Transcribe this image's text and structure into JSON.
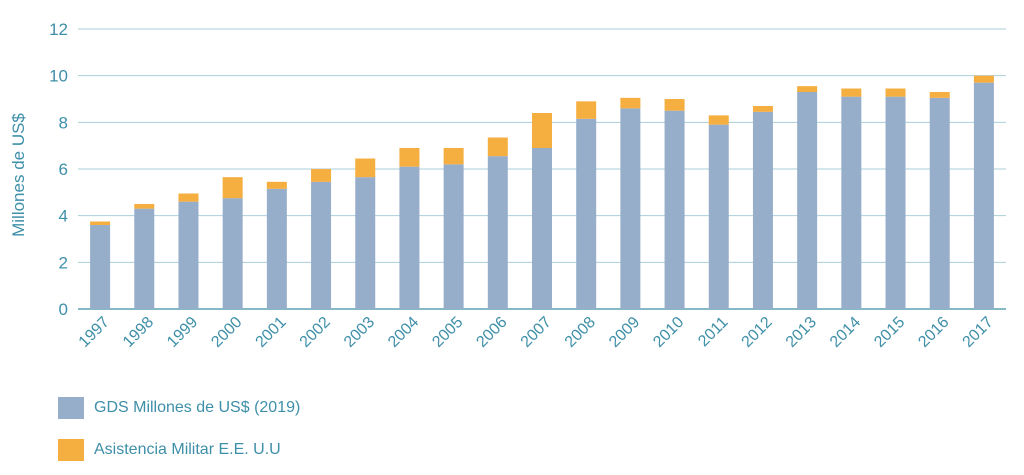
{
  "chart_data": {
    "type": "bar",
    "stacked": true,
    "title": "",
    "xlabel": "",
    "ylabel": "Millones de US$",
    "ylim": [
      0,
      12
    ],
    "yticks": [
      0,
      2,
      4,
      6,
      8,
      10,
      12
    ],
    "grid": true,
    "legend_position": "bottom-left",
    "categories": [
      "1997",
      "1998",
      "1999",
      "2000",
      "2001",
      "2002",
      "2003",
      "2004",
      "2005",
      "2006",
      "2007",
      "2008",
      "2009",
      "2010",
      "2011",
      "2012",
      "2013",
      "2014",
      "2015",
      "2016",
      "2017"
    ],
    "series": [
      {
        "name": "GDS Millones de US$ (2019)",
        "color": "#97aecb",
        "values": [
          3.6,
          4.3,
          4.6,
          4.75,
          5.15,
          5.45,
          5.65,
          6.1,
          6.2,
          6.55,
          6.9,
          8.15,
          8.6,
          8.5,
          7.9,
          8.45,
          9.3,
          9.1,
          9.1,
          9.05,
          9.7
        ]
      },
      {
        "name": "Asistencia Militar E.E. U.U",
        "color": "#f5ae40",
        "values": [
          0.15,
          0.2,
          0.35,
          0.9,
          0.3,
          0.55,
          0.8,
          0.8,
          0.7,
          0.8,
          1.5,
          0.75,
          0.45,
          0.5,
          0.4,
          0.25,
          0.25,
          0.35,
          0.35,
          0.25,
          0.3
        ]
      }
    ]
  },
  "colors": {
    "text": "#3e8fa8",
    "axis": "#3e8fa8",
    "grid": "#a9cfdb"
  }
}
